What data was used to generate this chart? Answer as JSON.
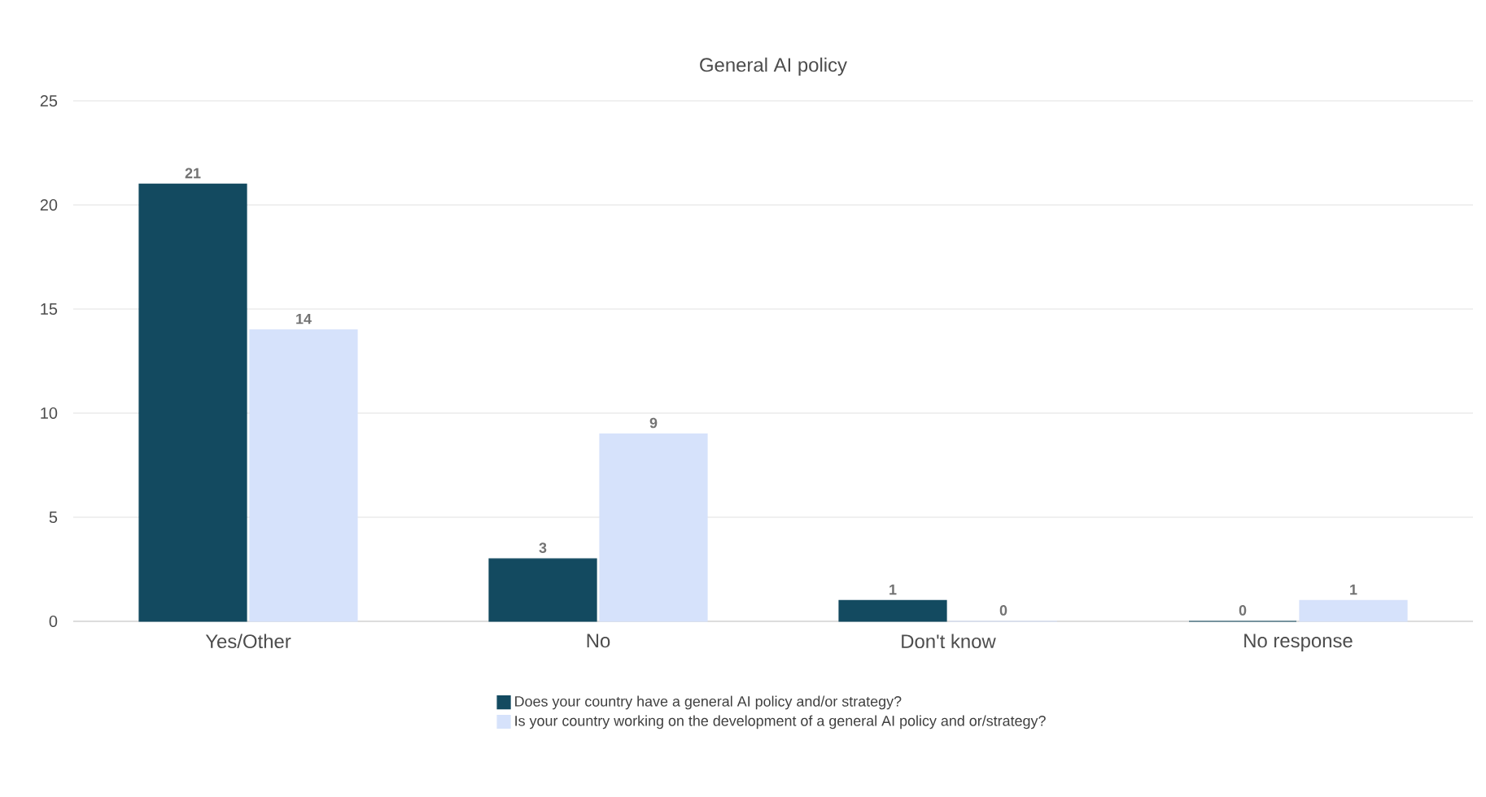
{
  "chart_data": {
    "type": "bar",
    "title": "General AI policy",
    "categories": [
      "Yes/Other",
      "No",
      "Don't know",
      "No response"
    ],
    "series": [
      {
        "name": "Does your country have a general AI policy and/or strategy?",
        "color": "#134a60",
        "values": [
          21,
          3,
          1,
          0
        ],
        "value_labels": [
          "21",
          "3",
          "1",
          "0"
        ]
      },
      {
        "name": "Is your country working on the development of a general AI policy and or/strategy?",
        "color": "#d6e2fb",
        "values": [
          14,
          9,
          0,
          1
        ],
        "value_labels": [
          "14",
          "9",
          "0",
          "1"
        ]
      }
    ],
    "ylim": [
      0,
      25
    ],
    "yticks": [
      0,
      5,
      10,
      15,
      20,
      25
    ],
    "grid": "y",
    "legend": "bottom"
  }
}
